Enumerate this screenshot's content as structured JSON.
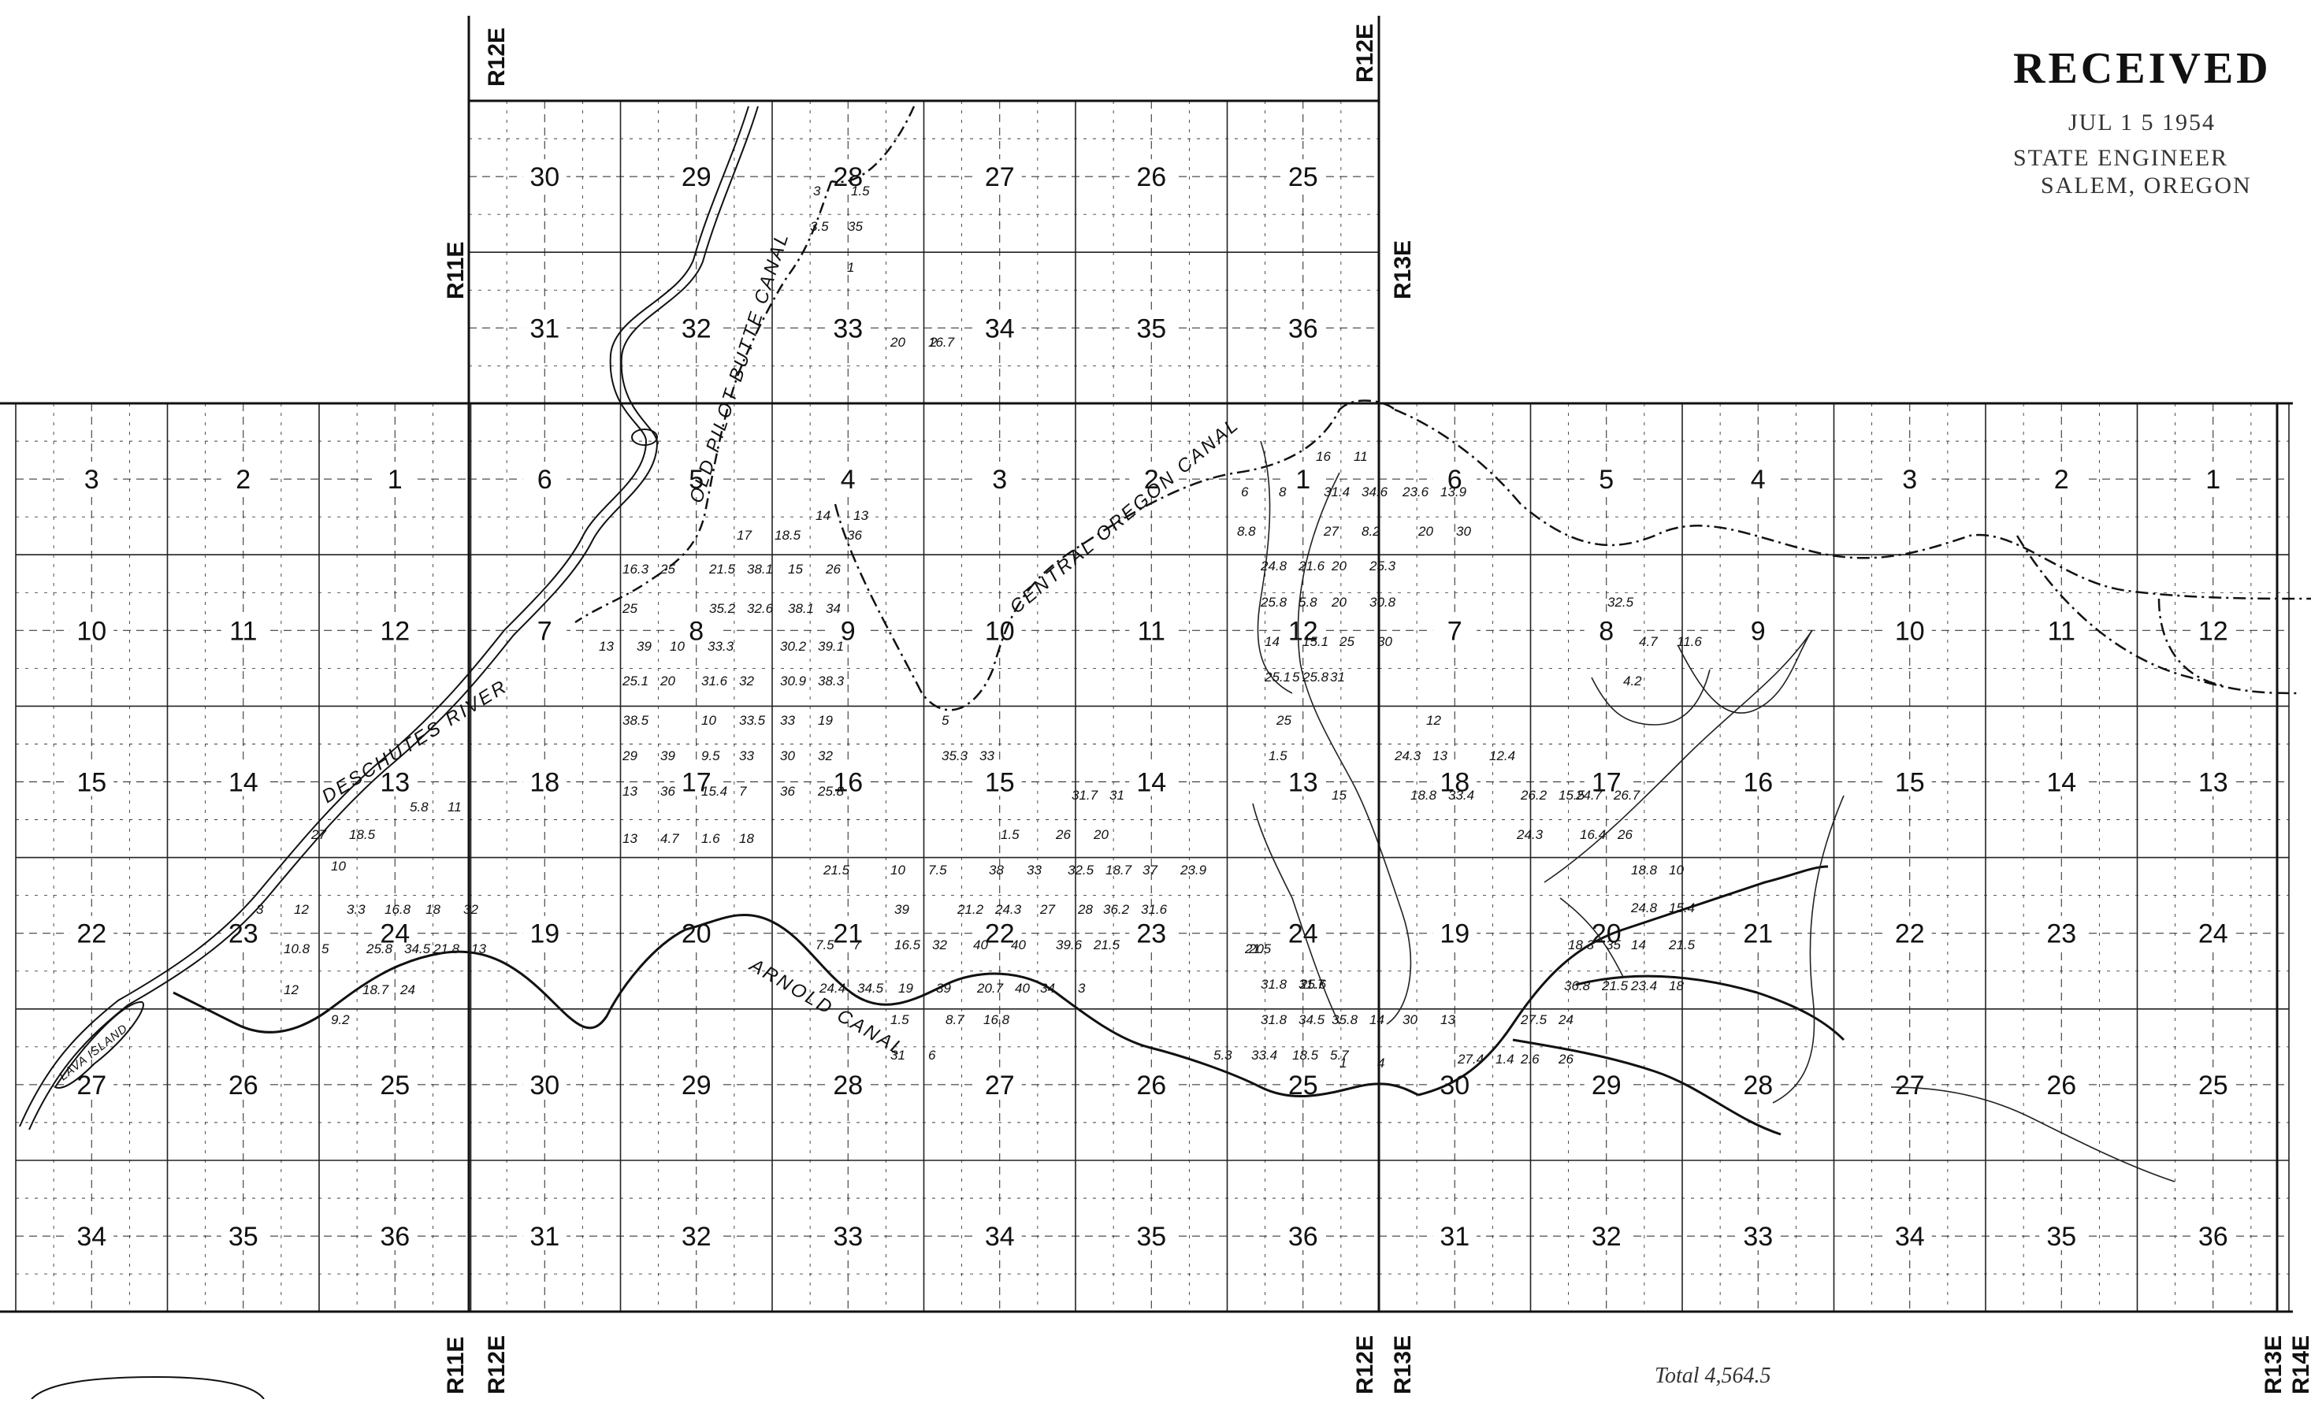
{
  "stamp": {
    "title": "RECEIVED",
    "date": "JUL 1 5 1954",
    "office": "STATE ENGINEER",
    "city": "SALEM, OREGON"
  },
  "total_note": "Total 4,564.5",
  "ranges": {
    "top_r12e_left": "R12E",
    "top_r12e_right": "R12E",
    "top_r11e": "R11E",
    "top_r13e": "R13E",
    "bottom_r11e": "R11E",
    "bottom_r12e_a": "R12E",
    "bottom_r12e_b": "R12E",
    "bottom_r13e_a": "R13E",
    "bottom_r13e_b": "R13E",
    "bottom_r14e": "R14E"
  },
  "features": {
    "deschutes_river": "DESCHUTES RIVER",
    "old_pilot_butte_canal": "OLD PILOT BUTTE CANAL",
    "central_oregon_canal": "CENTRAL OREGON CANAL",
    "arnold_canal": "ARNOLD CANAL",
    "lava_island": "LAVA ISLAND"
  },
  "top_block": {
    "row1": [
      "30",
      "29",
      "28",
      "27",
      "26",
      "25"
    ],
    "row2": [
      "31",
      "32",
      "33",
      "34",
      "35",
      "36"
    ]
  },
  "main_grid": {
    "west": [
      [
        "3",
        "2",
        "1"
      ],
      [
        "10",
        "11",
        "12"
      ],
      [
        "15",
        "14",
        "13"
      ],
      [
        "22",
        "23",
        "24"
      ],
      [
        "27",
        "26",
        "25"
      ],
      [
        "34",
        "35",
        "36"
      ]
    ],
    "center": [
      [
        "6",
        "5",
        "4",
        "3",
        "2",
        "1"
      ],
      [
        "7",
        "8",
        "9",
        "10",
        "11",
        "12"
      ],
      [
        "18",
        "17",
        "16",
        "15",
        "14",
        "13"
      ],
      [
        "19",
        "20",
        "21",
        "22",
        "23",
        "24"
      ],
      [
        "30",
        "29",
        "28",
        "27",
        "26",
        "25"
      ],
      [
        "31",
        "32",
        "33",
        "34",
        "35",
        "36"
      ]
    ],
    "east": [
      [
        "6",
        "5",
        "4",
        "3",
        "2",
        "1"
      ],
      [
        "7",
        "8",
        "9",
        "10",
        "11",
        "12"
      ],
      [
        "18",
        "17",
        "16",
        "15",
        "14",
        "13"
      ],
      [
        "19",
        "20",
        "21",
        "22",
        "23",
        "24"
      ],
      [
        "30",
        "29",
        "28",
        "27",
        "26",
        "25"
      ],
      [
        "31",
        "32",
        "33",
        "34",
        "35",
        "36"
      ]
    ]
  },
  "acreage_annotations": [
    [
      "3",
      "1.5"
    ],
    [
      "3.5",
      "35"
    ],
    [
      "1",
      ""
    ],
    [
      "20",
      "16.7"
    ],
    [
      "2",
      ""
    ],
    [
      "17",
      "18.5"
    ],
    [
      "14",
      "13"
    ],
    [
      "36",
      ""
    ],
    [
      "16.3",
      "25"
    ],
    [
      "21.5",
      "38.1"
    ],
    [
      "15",
      "26"
    ],
    [
      "25",
      ""
    ],
    [
      "35.2",
      "32.6"
    ],
    [
      "38.1",
      "34"
    ],
    [
      "13",
      "39"
    ],
    [
      "10",
      "33.3"
    ],
    [
      "30.2",
      "39.1"
    ],
    [
      "25.1",
      "20"
    ],
    [
      "31.6",
      "32"
    ],
    [
      "30.9",
      "38.3"
    ],
    [
      "38.5",
      ""
    ],
    [
      "10",
      "33.5"
    ],
    [
      "33",
      "19"
    ],
    [
      "29",
      "39"
    ],
    [
      "9.5",
      "33"
    ],
    [
      "30",
      "32"
    ],
    [
      "13",
      "36"
    ],
    [
      "15.4",
      "7"
    ],
    [
      "36",
      "25.8"
    ],
    [
      "13",
      "4.7"
    ],
    [
      "1.6",
      "18"
    ],
    [
      "5",
      ""
    ],
    [
      "35.3",
      "33"
    ],
    [
      "31.7",
      "31"
    ],
    [
      "1.5",
      ""
    ],
    [
      "26",
      "20"
    ],
    [
      "21.5",
      ""
    ],
    [
      "10",
      "7.5"
    ],
    [
      "38",
      "33"
    ],
    [
      "32.5",
      "18.7"
    ],
    [
      "37",
      "23.9"
    ],
    [
      "39",
      ""
    ],
    [
      "21.2",
      "24.3"
    ],
    [
      "27",
      "28"
    ],
    [
      "36.2",
      "31.6"
    ],
    [
      "7.5",
      "7"
    ],
    [
      "16.5",
      "32"
    ],
    [
      "40",
      "40"
    ],
    [
      "39.6",
      "21.5"
    ],
    [
      "24.4",
      "34.5"
    ],
    [
      "19",
      "39"
    ],
    [
      "20.7",
      "40"
    ],
    [
      "34",
      "3"
    ],
    [
      "1.5",
      ""
    ],
    [
      "8.7",
      "16.8"
    ],
    [
      "31",
      "6"
    ],
    [
      "5.8",
      "11"
    ],
    [
      "27",
      "18.5"
    ],
    [
      "10",
      ""
    ],
    [
      "3",
      "12"
    ],
    [
      "3.3",
      "16.8"
    ],
    [
      "18",
      "32"
    ],
    [
      "10.8",
      "5"
    ],
    [
      "25.8",
      "34.5"
    ],
    [
      "21.8",
      "13"
    ],
    [
      "12",
      ""
    ],
    [
      "18.7",
      "24"
    ],
    [
      "9.2",
      ""
    ],
    [
      "16",
      "11"
    ],
    [
      "6",
      "8"
    ],
    [
      "31.4",
      "34.6"
    ],
    [
      "23.6",
      "13.9"
    ],
    [
      "8.8",
      ""
    ],
    [
      "27",
      "8.2"
    ],
    [
      "20",
      "30"
    ],
    [
      "24.8",
      "21.6"
    ],
    [
      "20",
      "25.3"
    ],
    [
      "25.8",
      "5.8"
    ],
    [
      "20",
      "30.8"
    ],
    [
      "14",
      "15.1"
    ],
    [
      "25",
      "30"
    ],
    [
      "25.1",
      "25.8"
    ],
    [
      "5",
      "31"
    ],
    [
      "25",
      ""
    ],
    [
      "1.5",
      ""
    ],
    [
      "24.3",
      "13"
    ],
    [
      "12",
      ""
    ],
    [
      "15",
      ""
    ],
    [
      "18.8",
      "33.4"
    ],
    [
      "12.4",
      ""
    ],
    [
      "26.2",
      "15.5"
    ],
    [
      "24.7",
      "26.7"
    ],
    [
      "24.3",
      ""
    ],
    [
      "16.4",
      "26"
    ],
    [
      "32.5",
      ""
    ],
    [
      "4.7",
      "11.6"
    ],
    [
      "4.2",
      ""
    ],
    [
      "18.8",
      "10"
    ],
    [
      "24.8",
      "15.4"
    ],
    [
      "18.3",
      "35"
    ],
    [
      "14",
      "21.5"
    ],
    [
      "36.8",
      "21.5"
    ],
    [
      "23.4",
      "18"
    ],
    [
      "30",
      "13"
    ],
    [
      "27.5",
      "24"
    ],
    [
      "27.4",
      "1.4"
    ],
    [
      "2.6",
      "26"
    ],
    [
      "20",
      ""
    ],
    [
      "21.5",
      ""
    ],
    [
      "31.8",
      "31.7"
    ],
    [
      "25.6",
      ""
    ],
    [
      "31.8",
      "34.5"
    ],
    [
      "35.8",
      "14"
    ],
    [
      "5.3",
      "33.4"
    ],
    [
      "18.5",
      "5.7"
    ],
    [
      "1",
      "4"
    ]
  ]
}
